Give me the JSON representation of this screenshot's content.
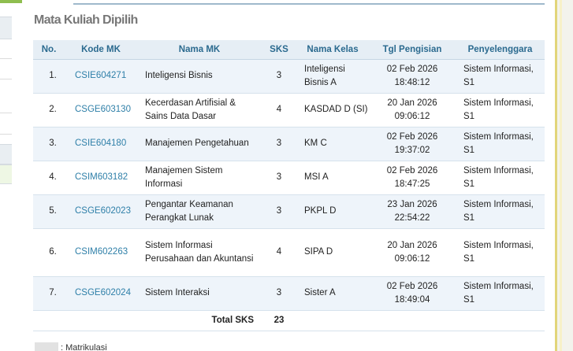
{
  "section": {
    "title": "Mata Kuliah Dipilih"
  },
  "table": {
    "headers": {
      "no": "No.",
      "kode": "Kode MK",
      "nama": "Nama MK",
      "sks": "SKS",
      "kelas": "Nama Kelas",
      "tgl": "Tgl Pengisian",
      "penyelenggara": "Penyelenggara"
    },
    "rows": [
      {
        "no": "1.",
        "kode": "CSIE604271",
        "nama": "Inteligensi Bisnis",
        "sks": "3",
        "kelas": "Inteligensi Bisnis A",
        "tgl_date": "02 Feb 2026",
        "tgl_time": "18:48:12",
        "penyelenggara": "Sistem Informasi, S1"
      },
      {
        "no": "2.",
        "kode": "CSGE603130",
        "nama": "Kecerdasan Artifisial & Sains Data Dasar",
        "sks": "4",
        "kelas": "KASDAD D (SI)",
        "tgl_date": "20 Jan 2026",
        "tgl_time": "09:06:12",
        "penyelenggara": "Sistem Informasi, S1"
      },
      {
        "no": "3.",
        "kode": "CSIE604180",
        "nama": "Manajemen Pengetahuan",
        "sks": "3",
        "kelas": "KM C",
        "tgl_date": "02 Feb 2026",
        "tgl_time": "19:37:02",
        "penyelenggara": "Sistem Informasi, S1"
      },
      {
        "no": "4.",
        "kode": "CSIM603182",
        "nama": "Manajemen Sistem Informasi",
        "sks": "3",
        "kelas": "MSI A",
        "tgl_date": "02 Feb 2026",
        "tgl_time": "18:47:25",
        "penyelenggara": "Sistem Informasi, S1"
      },
      {
        "no": "5.",
        "kode": "CSGE602023",
        "nama": "Pengantar Keamanan Perangkat Lunak",
        "sks": "3",
        "kelas": "PKPL D",
        "tgl_date": "23 Jan 2026",
        "tgl_time": "22:54:22",
        "penyelenggara": "Sistem Informasi, S1"
      },
      {
        "no": "6.",
        "kode": "CSIM602263",
        "nama": "Sistem Informasi Perusahaan dan Akuntansi",
        "sks": "4",
        "kelas": "SIPA D",
        "tgl_date": "20 Jan 2026",
        "tgl_time": "09:06:12",
        "penyelenggara": "Sistem Informasi, S1"
      },
      {
        "no": "7.",
        "kode": "CSGE602024",
        "nama": "Sistem Interaksi",
        "sks": "3",
        "kelas": "Sister A",
        "tgl_date": "02 Feb 2026",
        "tgl_time": "18:49:04",
        "penyelenggara": "Sistem Informasi, S1"
      }
    ],
    "total_label": "Total SKS",
    "total_value": "23"
  },
  "legend": {
    "label": ": Matrikulasi"
  },
  "colors": {
    "link": "#2e7fa8",
    "header_text": "#2b6a8f",
    "row_alt": "#eef4fa",
    "accent_green": "#8fbe4f"
  }
}
